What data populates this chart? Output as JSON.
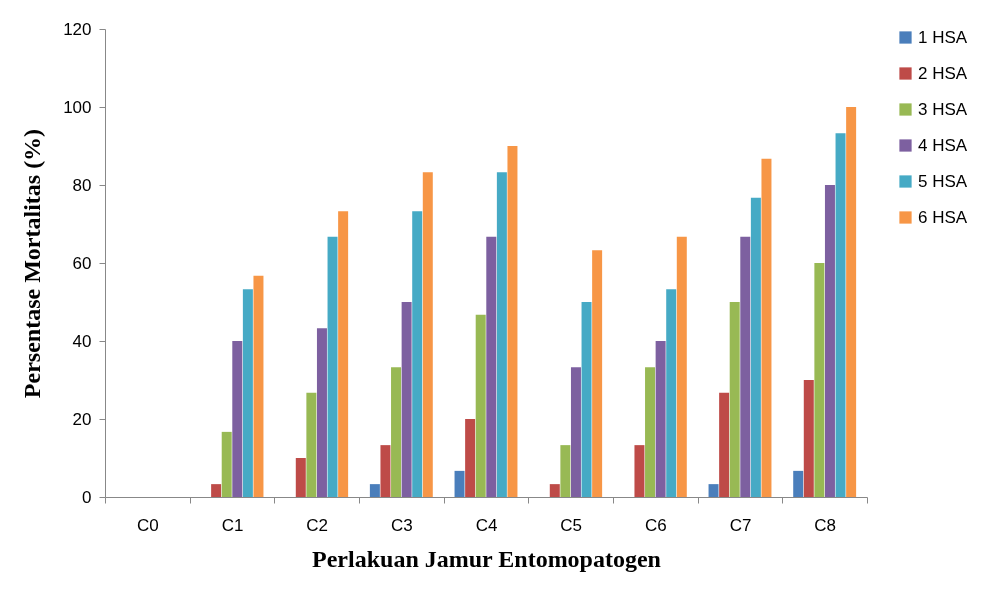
{
  "chart_data": {
    "type": "bar",
    "xlabel": "Perlakuan Jamur Entomopatogen",
    "ylabel": "Persentase Mortalitas (%)",
    "categories": [
      "C0",
      "C1",
      "C2",
      "C3",
      "C4",
      "C5",
      "C6",
      "C7",
      "C8"
    ],
    "series": [
      {
        "name": "1 HSA",
        "color": "#4a7ebb",
        "values": [
          0,
          0,
          0,
          3.3,
          6.7,
          0,
          0,
          3.3,
          6.7
        ]
      },
      {
        "name": "2 HSA",
        "color": "#be4b48",
        "values": [
          0,
          3.3,
          10,
          13.3,
          20,
          3.3,
          13.3,
          26.7,
          30
        ]
      },
      {
        "name": "3 HSA",
        "color": "#98b954",
        "values": [
          0,
          16.7,
          26.7,
          33.3,
          46.7,
          13.3,
          33.3,
          50,
          60
        ]
      },
      {
        "name": "4 HSA",
        "color": "#7d60a0",
        "values": [
          0,
          40,
          43.3,
          50,
          66.7,
          33.3,
          40,
          66.7,
          80
        ]
      },
      {
        "name": "5 HSA",
        "color": "#46aac5",
        "values": [
          0,
          53.3,
          66.7,
          73.3,
          83.3,
          50,
          53.3,
          76.7,
          93.3
        ]
      },
      {
        "name": "6 HSA",
        "color": "#f79646",
        "values": [
          0,
          56.7,
          73.3,
          83.3,
          90,
          63.3,
          66.7,
          86.7,
          100
        ]
      }
    ],
    "ylim": [
      0,
      120
    ],
    "yticks": [
      0,
      20,
      40,
      60,
      80,
      100,
      120
    ],
    "legend": "right",
    "grid": false
  }
}
